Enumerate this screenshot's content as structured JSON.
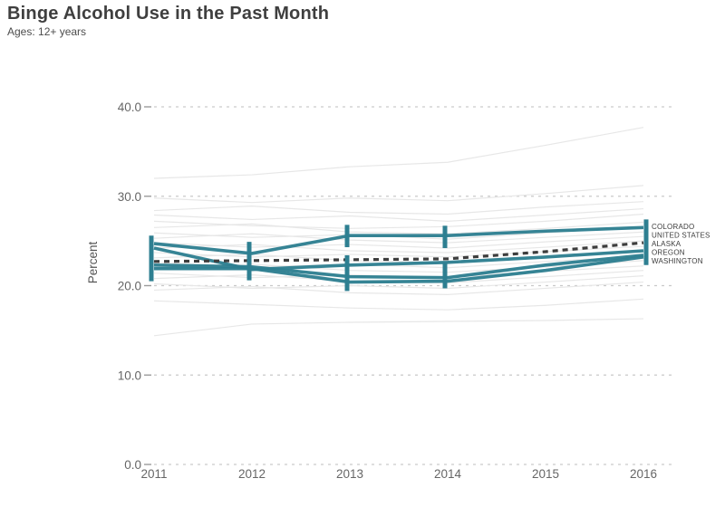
{
  "header": {
    "title": "Binge Alcohol Use in the Past Month",
    "subtitle": "Ages: 12+ years"
  },
  "chart_data": {
    "type": "line",
    "title": "Binge Alcohol Use in the Past Month",
    "subtitle": "Ages: 12+ years",
    "xlabel": "",
    "ylabel": "Percent",
    "x": [
      2011,
      2012,
      2013,
      2014,
      2015,
      2016
    ],
    "xtick_labels": [
      "2011",
      "2012",
      "2013",
      "2014",
      "2015",
      "2016"
    ],
    "ylim": [
      0,
      40
    ],
    "yticks": [
      0,
      10,
      20,
      30,
      40
    ],
    "ytick_labels": [
      "0.0",
      "10.0",
      "20.0",
      "30.0",
      "40.0"
    ],
    "grid": "horizontal-dashed",
    "legend_position": "right-end-labels",
    "accent_color": "#2e7f91",
    "us_line_color": "#3d3d3d",
    "grid_color": "#c9c9c9",
    "background_series_color": "#e7e7e7",
    "series": [
      {
        "name": "COLORADO",
        "color": "#2e7f91",
        "style": "solid",
        "values": [
          24.7,
          23.6,
          25.6,
          25.6,
          26.1,
          26.5
        ]
      },
      {
        "name": "UNITED STATES",
        "color": "#3d3d3d",
        "style": "dashed",
        "values": [
          22.7,
          22.8,
          22.9,
          23.0,
          23.8,
          24.8
        ]
      },
      {
        "name": "ALASKA",
        "color": "#2e7f91",
        "style": "solid",
        "values": [
          24.2,
          21.8,
          22.3,
          22.6,
          23.2,
          23.9
        ]
      },
      {
        "name": "OREGON",
        "color": "#2e7f91",
        "style": "solid",
        "values": [
          22.3,
          22.1,
          21.0,
          20.9,
          22.3,
          23.4
        ]
      },
      {
        "name": "WASHINGTON",
        "color": "#2e7f91",
        "style": "solid",
        "values": [
          21.9,
          21.9,
          20.4,
          20.5,
          21.7,
          23.2
        ]
      }
    ],
    "end_labels_order": [
      "COLORADO",
      "UNITED STATES",
      "ALASKA",
      "OREGON",
      "WASHINGTON"
    ],
    "error_bars": [
      {
        "x": 2011,
        "offset": -3,
        "segments": [
          [
            20.5,
            25.6
          ]
        ]
      },
      {
        "x": 2012,
        "offset": -3,
        "segments": [
          [
            20.6,
            24.9
          ]
        ]
      },
      {
        "x": 2013,
        "offset": -3,
        "segments": [
          [
            19.4,
            23.4
          ],
          [
            24.3,
            26.8
          ]
        ]
      },
      {
        "x": 2014,
        "offset": -3,
        "segments": [
          [
            19.7,
            22.6
          ],
          [
            24.2,
            26.7
          ]
        ]
      },
      {
        "x": 2016,
        "offset": 3,
        "segments": [
          [
            22.3,
            27.4
          ]
        ]
      }
    ],
    "background_series": [
      [
        32.0,
        32.4,
        33.3,
        33.8,
        35.7,
        37.7
      ],
      [
        29.8,
        29.3,
        29.8,
        29.5,
        30.3,
        31.2
      ],
      [
        28.4,
        28.9,
        28.2,
        28.0,
        28.8,
        29.4
      ],
      [
        27.9,
        27.4,
        27.8,
        27.2,
        27.9,
        28.6
      ],
      [
        27.2,
        26.7,
        26.4,
        26.6,
        27.2,
        28.0
      ],
      [
        26.5,
        26.9,
        26.0,
        25.8,
        26.4,
        27.1
      ],
      [
        25.9,
        25.4,
        25.7,
        25.2,
        25.9,
        26.6
      ],
      [
        25.3,
        25.8,
        25.1,
        24.8,
        25.4,
        26.0
      ],
      [
        24.8,
        24.3,
        24.6,
        24.2,
        24.9,
        25.5
      ],
      [
        24.2,
        24.6,
        23.9,
        23.7,
        24.3,
        25.0
      ],
      [
        23.7,
        23.2,
        23.5,
        23.2,
        23.8,
        24.4
      ],
      [
        23.1,
        23.5,
        22.8,
        22.6,
        23.2,
        23.9
      ],
      [
        22.6,
        22.1,
        22.4,
        22.0,
        22.7,
        23.3
      ],
      [
        22.0,
        22.4,
        21.7,
        21.5,
        22.1,
        22.8
      ],
      [
        21.4,
        20.9,
        21.2,
        20.9,
        21.6,
        22.2
      ],
      [
        20.8,
        21.2,
        20.5,
        20.3,
        21.0,
        21.7
      ],
      [
        20.2,
        19.7,
        20.0,
        19.7,
        20.4,
        21.1
      ],
      [
        19.5,
        19.9,
        19.2,
        19.0,
        19.7,
        20.4
      ],
      [
        18.3,
        17.9,
        17.5,
        17.3,
        17.8,
        18.5
      ],
      [
        14.4,
        15.7,
        15.9,
        16.0,
        16.1,
        16.3
      ]
    ]
  }
}
